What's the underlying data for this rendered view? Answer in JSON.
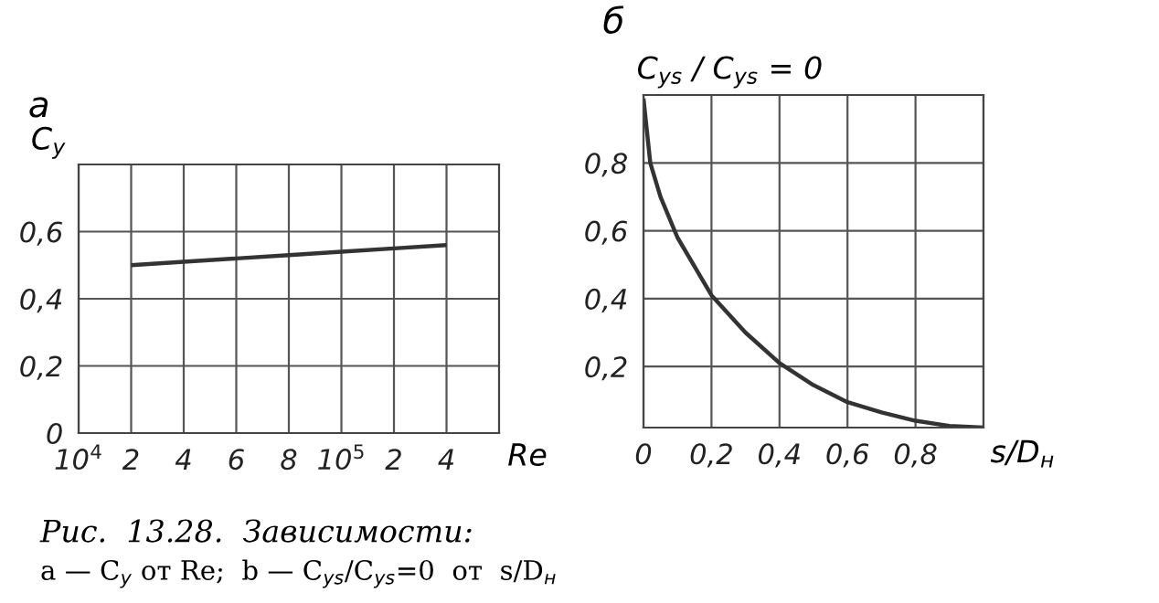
{
  "chart_data": [
    {
      "type": "line",
      "title": "а",
      "ylabel": "C$_{y}$",
      "xlabel": "Re",
      "categories": [
        "10$^{4}$",
        "2",
        "4",
        "6",
        "8",
        "10$^{5}$",
        "2",
        "4"
      ],
      "series": [
        {
          "color": "#333333",
          "values": [
            null,
            0.5,
            0.51,
            0.52,
            0.53,
            0.54,
            0.55,
            0.56
          ]
        }
      ],
      "ylim": [
        0,
        0.8
      ],
      "yticks": [
        {
          "value": 0,
          "label": "0"
        },
        {
          "value": 0.2,
          "label": "0,2"
        },
        {
          "value": 0.4,
          "label": "0,4"
        },
        {
          "value": 0.6,
          "label": "0,6"
        },
        {
          "value": 0.8,
          "label": null
        }
      ],
      "grid": true,
      "annotations": [
        "Рис.  13.28.  Зависимости:",
        "a — C$_{y}$ от Re;  b — C$_{ys}$/C$_{ys}$=0  от  s/D$_{н}$"
      ]
    },
    {
      "type": "line",
      "title": "б",
      "ylabel": "C$_{ys}$ / C$_{ys}$ = 0",
      "xlabel": "s/D$_{н}$",
      "series": [
        {
          "color": "#333333",
          "x": [
            0,
            0.02,
            0.05,
            0.1,
            0.2,
            0.3,
            0.4,
            0.5,
            0.6,
            0.7,
            0.8,
            0.9,
            1.0
          ],
          "values": [
            0.99,
            0.8,
            0.7,
            0.58,
            0.41,
            0.3,
            0.21,
            0.145,
            0.095,
            0.065,
            0.04,
            0.025,
            0.02
          ]
        }
      ],
      "xlim": [
        0,
        1
      ],
      "xticks": [
        {
          "value": 0,
          "label": "0"
        },
        {
          "value": 0.2,
          "label": "0,2"
        },
        {
          "value": 0.4,
          "label": "0,4"
        },
        {
          "value": 0.6,
          "label": "0,6"
        },
        {
          "value": 0.8,
          "label": "0,8"
        },
        {
          "value": 1.0,
          "label": null
        }
      ],
      "ylim": [
        0.02,
        1
      ],
      "yticks": [
        {
          "value": 0.2,
          "label": "0,2"
        },
        {
          "value": 0.4,
          "label": "0,4"
        },
        {
          "value": 0.6,
          "label": "0,6"
        },
        {
          "value": 0.8,
          "label": "0,8"
        },
        {
          "value": 1.0,
          "label": null
        }
      ],
      "grid": true
    }
  ]
}
